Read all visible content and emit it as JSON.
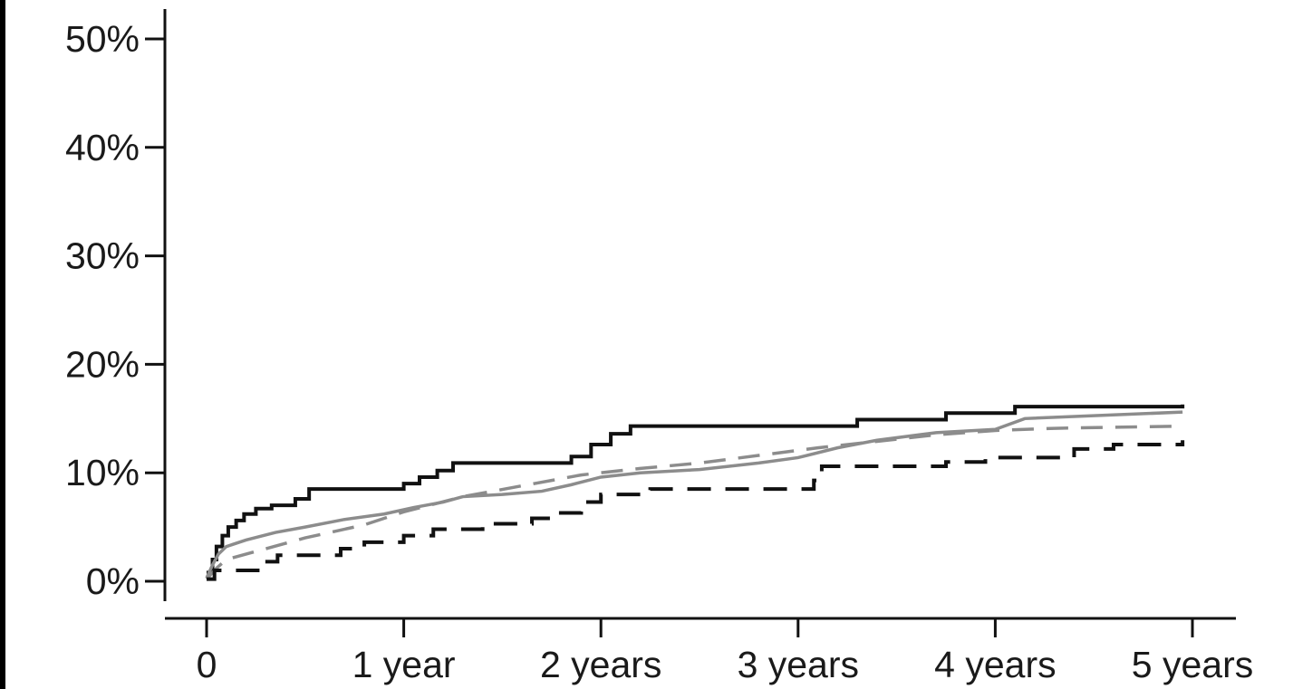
{
  "chart_data": {
    "type": "line",
    "title": "",
    "xlabel": "",
    "ylabel": "",
    "xlim": [
      0,
      5
    ],
    "ylim": [
      0,
      50
    ],
    "x_ticks": [
      0,
      1,
      2,
      3,
      4,
      5
    ],
    "x_tick_labels": [
      "0",
      "1 year",
      "2 years",
      "3 years",
      "4 years",
      "5 years"
    ],
    "y_ticks": [
      0,
      10,
      20,
      30,
      40,
      50
    ],
    "y_tick_labels": [
      "0%",
      "10%",
      "20%",
      "30%",
      "40%",
      "50%"
    ],
    "grid": false,
    "legend": "none",
    "series": [
      {
        "color": "#111111",
        "dash": "solid",
        "step": true,
        "points": [
          [
            0,
            0.8
          ],
          [
            0.03,
            2.0
          ],
          [
            0.05,
            3.2
          ],
          [
            0.08,
            4.2
          ],
          [
            0.11,
            5.0
          ],
          [
            0.15,
            5.6
          ],
          [
            0.19,
            6.2
          ],
          [
            0.25,
            6.7
          ],
          [
            0.33,
            7.0
          ],
          [
            0.45,
            7.6
          ],
          [
            0.52,
            8.5
          ],
          [
            1.0,
            9.0
          ],
          [
            1.08,
            9.6
          ],
          [
            1.17,
            10.2
          ],
          [
            1.25,
            10.9
          ],
          [
            1.85,
            11.5
          ],
          [
            1.95,
            12.6
          ],
          [
            2.05,
            13.6
          ],
          [
            2.15,
            14.3
          ],
          [
            3.3,
            14.9
          ],
          [
            3.75,
            15.5
          ],
          [
            4.1,
            16.1
          ],
          [
            4.95,
            16.3
          ]
        ]
      },
      {
        "color": "#8c8c8c",
        "dash": "solid",
        "step": false,
        "points": [
          [
            0,
            0.3
          ],
          [
            0.03,
            1.5
          ],
          [
            0.06,
            2.5
          ],
          [
            0.1,
            3.2
          ],
          [
            0.2,
            3.8
          ],
          [
            0.35,
            4.5
          ],
          [
            0.5,
            5.0
          ],
          [
            0.7,
            5.7
          ],
          [
            0.9,
            6.2
          ],
          [
            1.05,
            6.8
          ],
          [
            1.2,
            7.3
          ],
          [
            1.3,
            7.8
          ],
          [
            1.5,
            8.0
          ],
          [
            1.7,
            8.3
          ],
          [
            1.85,
            8.9
          ],
          [
            2.0,
            9.6
          ],
          [
            2.2,
            10.0
          ],
          [
            2.5,
            10.3
          ],
          [
            2.8,
            10.9
          ],
          [
            3.0,
            11.4
          ],
          [
            3.2,
            12.3
          ],
          [
            3.4,
            13.0
          ],
          [
            3.7,
            13.7
          ],
          [
            4.0,
            14.0
          ],
          [
            4.15,
            15.0
          ],
          [
            4.95,
            15.6
          ]
        ]
      },
      {
        "color": "#8c8c8c",
        "dash": "dashed",
        "step": false,
        "points": [
          [
            0,
            0.2
          ],
          [
            0.05,
            1.2
          ],
          [
            0.1,
            2.0
          ],
          [
            0.3,
            3.0
          ],
          [
            0.5,
            4.0
          ],
          [
            0.8,
            5.2
          ],
          [
            1.0,
            6.4
          ],
          [
            1.3,
            7.8
          ],
          [
            1.6,
            8.8
          ],
          [
            1.9,
            9.8
          ],
          [
            2.2,
            10.4
          ],
          [
            2.5,
            10.9
          ],
          [
            2.8,
            11.6
          ],
          [
            3.1,
            12.3
          ],
          [
            3.4,
            12.9
          ],
          [
            3.7,
            13.5
          ],
          [
            4.0,
            13.9
          ],
          [
            4.3,
            14.1
          ],
          [
            4.6,
            14.2
          ],
          [
            4.95,
            14.3
          ]
        ]
      },
      {
        "color": "#111111",
        "dash": "dashed",
        "step": true,
        "points": [
          [
            0,
            0.2
          ],
          [
            0.04,
            1.0
          ],
          [
            0.28,
            1.8
          ],
          [
            0.36,
            2.4
          ],
          [
            0.68,
            3.0
          ],
          [
            0.8,
            3.6
          ],
          [
            1.0,
            4.2
          ],
          [
            1.15,
            4.8
          ],
          [
            1.4,
            5.3
          ],
          [
            1.65,
            5.8
          ],
          [
            1.78,
            6.3
          ],
          [
            1.9,
            7.3
          ],
          [
            2.0,
            8.0
          ],
          [
            2.25,
            8.5
          ],
          [
            3.08,
            9.3
          ],
          [
            3.12,
            10.6
          ],
          [
            3.75,
            11.0
          ],
          [
            3.95,
            11.4
          ],
          [
            4.4,
            12.2
          ],
          [
            4.6,
            12.6
          ],
          [
            4.95,
            13.0
          ]
        ]
      }
    ]
  }
}
